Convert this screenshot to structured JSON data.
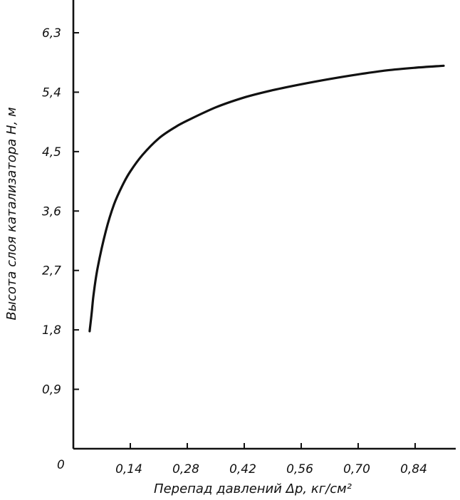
{
  "chart_data": {
    "type": "line",
    "xlabel": "Перепад давлений Δp, кг/см²",
    "ylabel": "Высота слоя катализатора H, м",
    "origin_label": "0",
    "x_tick_labels": [
      "0,14",
      "0,28",
      "0,42",
      "0,56",
      "0,70",
      "0,84"
    ],
    "y_tick_labels": [
      "0,9",
      "1,8",
      "2,7",
      "3,6",
      "4,5",
      "5,4",
      "6,3"
    ],
    "x_ticks": [
      0.14,
      0.28,
      0.42,
      0.56,
      0.7,
      0.84
    ],
    "y_ticks": [
      0.9,
      1.8,
      2.7,
      3.6,
      4.5,
      5.4,
      6.3
    ],
    "xlim": [
      0,
      0.98
    ],
    "ylim": [
      0,
      6.6
    ],
    "grid": false,
    "series": [
      {
        "x": [
          0.04,
          0.045,
          0.05,
          0.06,
          0.08,
          0.1,
          0.12,
          0.14,
          0.17,
          0.21,
          0.25,
          0.28,
          0.35,
          0.42,
          0.49,
          0.56,
          0.63,
          0.7,
          0.77,
          0.84,
          0.91
        ],
        "y": [
          1.78,
          2.05,
          2.35,
          2.75,
          3.3,
          3.7,
          3.98,
          4.2,
          4.45,
          4.7,
          4.87,
          4.97,
          5.17,
          5.32,
          5.43,
          5.52,
          5.6,
          5.67,
          5.73,
          5.77,
          5.8
        ]
      }
    ]
  }
}
